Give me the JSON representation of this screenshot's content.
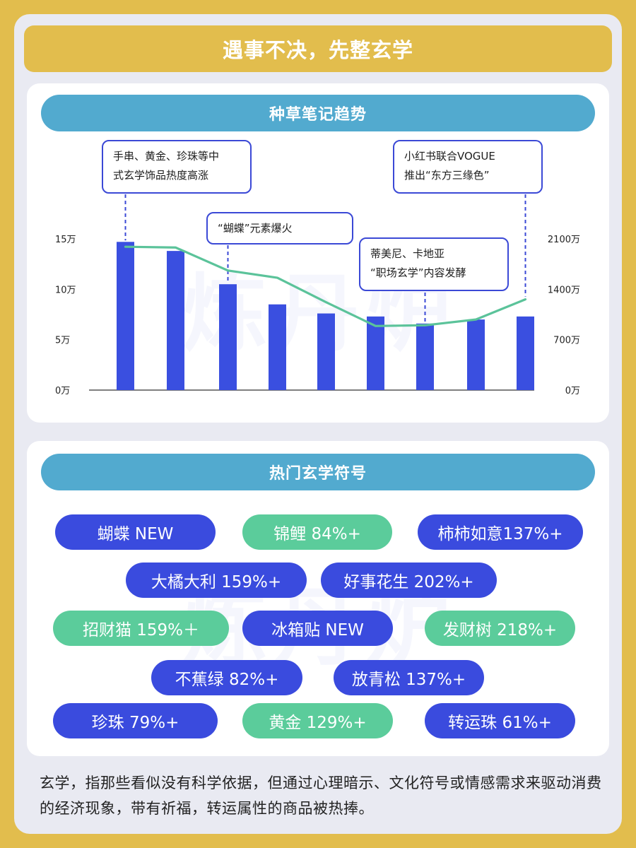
{
  "title": "遇事不决，先整玄学",
  "chart_section": {
    "header": "种草笔记趋势",
    "annotations": [
      {
        "text": "手串、黄金、珍珠等中\n式玄学饰品热度高涨"
      },
      {
        "text": "“蝴蝶”元素爆火"
      },
      {
        "text": "蒂美尼、卡地亚\n“职场玄学”内容发酵"
      },
      {
        "text": "小红书联合VOGUE\n推出“东方三缘色”"
      }
    ]
  },
  "chart_data": {
    "type": "bar",
    "categories": [
      "",
      "",
      "",
      "",
      "",
      "",
      "",
      "",
      ""
    ],
    "series": [
      {
        "axis": "left",
        "type": "bar",
        "color": "#3a4fe0",
        "values": [
          14.7,
          13.8,
          10.5,
          8.5,
          7.6,
          7.3,
          6.6,
          7.0,
          7.3
        ]
      },
      {
        "axis": "right",
        "type": "line",
        "color": "#5bc39a",
        "values": [
          1990,
          1980,
          1660,
          1560,
          1220,
          890,
          900,
          980,
          1260
        ]
      }
    ],
    "y_left": {
      "ticks": [
        "0万",
        "5万",
        "10万",
        "15万"
      ],
      "range": [
        0,
        15
      ]
    },
    "y_right": {
      "ticks": [
        "0万",
        "700万",
        "1400万",
        "2100万"
      ],
      "range": [
        0,
        2100
      ]
    }
  },
  "symbols_section": {
    "header": "热门玄学符号",
    "tags": [
      {
        "label": "蝴蝶 NEW",
        "color": "blue"
      },
      {
        "label": "锦鲤 84%+",
        "color": "green"
      },
      {
        "label": "柿柿如意137%+",
        "color": "blue"
      },
      {
        "label": "大橘大利 159%+",
        "color": "blue"
      },
      {
        "label": "好事花生 202%+",
        "color": "blue"
      },
      {
        "label": "招财猫 159%＋",
        "color": "green"
      },
      {
        "label": "冰箱贴 NEW",
        "color": "blue"
      },
      {
        "label": "发财树 218%+",
        "color": "green"
      },
      {
        "label": "不蕉绿 82%+",
        "color": "blue"
      },
      {
        "label": "放青松 137%+",
        "color": "blue"
      },
      {
        "label": "珍珠 79%+",
        "color": "blue"
      },
      {
        "label": "黄金 129%+",
        "color": "green"
      },
      {
        "label": "转运珠 61%+",
        "color": "blue"
      }
    ]
  },
  "footer": "玄学，指那些看似没有科学依据，但通过心理暗示、文化符号或情感需求来驱动消费的经济现象，带有祈福，转运属性的商品被热捧。",
  "watermark": "炼丹炉"
}
